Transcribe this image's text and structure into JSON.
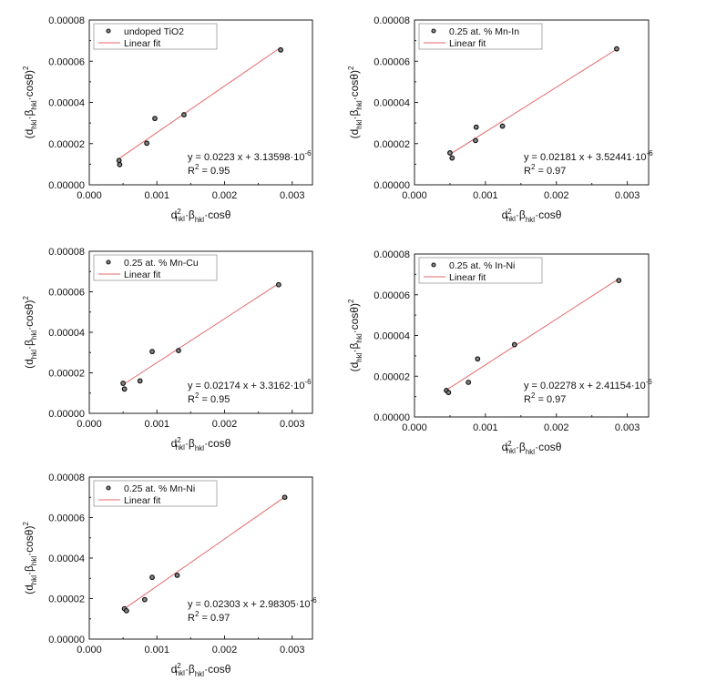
{
  "chart_data": [
    {
      "type": "scatter",
      "title": "",
      "xlabel": "d²hkl·βhkl·cosθ",
      "ylabel": "(dhkl·βhkl·cosθ)²",
      "xlim": [
        0.0,
        0.0033
      ],
      "ylim": [
        0.0,
        8e-05
      ],
      "x_ticks": [
        "0.000",
        "0.001",
        "0.002",
        "0.003"
      ],
      "y_ticks": [
        "0.00000",
        "0.00002",
        "0.00004",
        "0.00006",
        "0.00008"
      ],
      "legend_position": "top-left",
      "series": [
        {
          "name": "undoped TiO2",
          "kind": "points",
          "x": [
            0.00044,
            0.00045,
            0.00085,
            0.00097,
            0.0014,
            0.00283
          ],
          "y": [
            1.18e-05,
            9.8e-06,
            2.02e-05,
            3.22e-05,
            3.4e-05,
            6.55e-05
          ]
        },
        {
          "name": "Linear fit",
          "kind": "line",
          "color": "#e46a6a",
          "x": [
            0.00043,
            0.00283
          ]
        }
      ],
      "annotation": {
        "equation_prefix": "y = 0.0223 x +",
        "intercept": "3.13598·10",
        "intercept_exp": "-6",
        "r2_prefix": "R",
        "r2_suffix": " = 0.95"
      }
    },
    {
      "type": "scatter",
      "title": "",
      "xlabel": "d²hkl·βhkl·cosθ",
      "ylabel": "(dhkl·βhkl·cosθ)²",
      "xlim": [
        0.0,
        0.0033
      ],
      "ylim": [
        0.0,
        8e-05
      ],
      "x_ticks": [
        "0.000",
        "0.001",
        "0.002",
        "0.003"
      ],
      "y_ticks": [
        "0.00000",
        "0.00002",
        "0.00004",
        "0.00006",
        "0.00008"
      ],
      "legend_position": "top-left",
      "series": [
        {
          "name": "0.25 at. % Mn-In",
          "kind": "points",
          "x": [
            0.0005,
            0.00053,
            0.00086,
            0.00087,
            0.00124,
            0.00285
          ],
          "y": [
            1.55e-05,
            1.3e-05,
            2.15e-05,
            2.8e-05,
            2.85e-05,
            6.6e-05
          ]
        },
        {
          "name": "Linear fit",
          "kind": "line",
          "color": "#e46a6a",
          "x": [
            0.00049,
            0.00285
          ]
        }
      ],
      "annotation": {
        "equation_prefix": "y = 0.02181 x +",
        "intercept": "3.52441·10",
        "intercept_exp": "-6",
        "r2_prefix": "R",
        "r2_suffix": " = 0.97"
      }
    },
    {
      "type": "scatter",
      "title": "",
      "xlabel": "d²hkl·βhkl·cosθ",
      "ylabel": "(dhkl·βhkl·cosθ)²",
      "xlim": [
        0.0,
        0.0033
      ],
      "ylim": [
        0.0,
        8e-05
      ],
      "x_ticks": [
        "0.000",
        "0.001",
        "0.002",
        "0.003"
      ],
      "y_ticks": [
        "0.00000",
        "0.00002",
        "0.00004",
        "0.00006",
        "0.00008"
      ],
      "legend_position": "top-left",
      "series": [
        {
          "name": "0.25 at. % Mn-Cu",
          "kind": "points",
          "x": [
            0.0005,
            0.00052,
            0.00075,
            0.00093,
            0.00132,
            0.0028
          ],
          "y": [
            1.48e-05,
            1.2e-05,
            1.6e-05,
            3.05e-05,
            3.1e-05,
            6.35e-05
          ]
        },
        {
          "name": "Linear fit",
          "kind": "line",
          "color": "#e46a6a",
          "x": [
            0.00049,
            0.0028
          ]
        }
      ],
      "annotation": {
        "equation_prefix": "y = 0.02174 x +",
        "intercept": "3.3162·10",
        "intercept_exp": "-6",
        "r2_prefix": "R",
        "r2_suffix": " = 0.95"
      }
    },
    {
      "type": "scatter",
      "title": "",
      "xlabel": "d²hkl·βhkl·cosθ",
      "ylabel": "(dhkl·βhkl·cosθ)²",
      "xlim": [
        0.0,
        0.0033
      ],
      "ylim": [
        0.0,
        8e-05
      ],
      "x_ticks": [
        "0.000",
        "0.001",
        "0.002",
        "0.003"
      ],
      "y_ticks": [
        "0.00000",
        "0.00002",
        "0.00004",
        "0.00006",
        "0.00008"
      ],
      "legend_position": "top-left",
      "series": [
        {
          "name": "0.25 at. % In-Ni",
          "kind": "points",
          "x": [
            0.00045,
            0.00048,
            0.00076,
            0.00089,
            0.00141,
            0.00288
          ],
          "y": [
            1.3e-05,
            1.2e-05,
            1.7e-05,
            2.85e-05,
            3.55e-05,
            6.7e-05
          ]
        },
        {
          "name": "Linear fit",
          "kind": "line",
          "color": "#e46a6a",
          "x": [
            0.00044,
            0.00288
          ]
        }
      ],
      "annotation": {
        "equation_prefix": "y = 0.02278 x +",
        "intercept": "2.41154·10",
        "intercept_exp": "-6",
        "r2_prefix": "R",
        "r2_suffix": " = 0.97"
      }
    },
    {
      "type": "scatter",
      "title": "",
      "xlabel": "d²hkl·βhkl·cosθ",
      "ylabel": "(dhkl·βhkl·cosθ)²",
      "xlim": [
        0.0,
        0.0033
      ],
      "ylim": [
        0.0,
        8e-05
      ],
      "x_ticks": [
        "0.000",
        "0.001",
        "0.002",
        "0.003"
      ],
      "y_ticks": [
        "0.00000",
        "0.00002",
        "0.00004",
        "0.00006",
        "0.00008"
      ],
      "legend_position": "top-left",
      "series": [
        {
          "name": "0.25 at. % Mn-Ni",
          "kind": "points",
          "x": [
            0.00052,
            0.00055,
            0.00082,
            0.00093,
            0.0013,
            0.00289
          ],
          "y": [
            1.5e-05,
            1.4e-05,
            1.95e-05,
            3.05e-05,
            3.15e-05,
            7e-05
          ]
        },
        {
          "name": "Linear fit",
          "kind": "line",
          "color": "#e46a6a",
          "x": [
            0.00051,
            0.00289
          ]
        }
      ],
      "annotation": {
        "equation_prefix": "y = 0.02303 x +",
        "intercept": "2.98305·10",
        "intercept_exp": "-6",
        "r2_prefix": "R",
        "r2_suffix": " = 0.97"
      }
    }
  ]
}
